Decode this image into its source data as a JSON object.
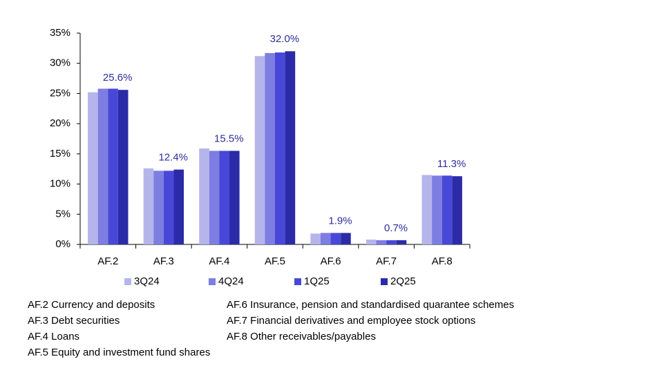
{
  "chart_data": {
    "type": "bar",
    "categories": [
      "AF.2",
      "AF.3",
      "AF.4",
      "AF.5",
      "AF.6",
      "AF.7",
      "AF.8"
    ],
    "series": [
      {
        "name": "3Q24",
        "color": "#b5b5ec",
        "values": [
          25.2,
          12.6,
          15.9,
          31.2,
          1.8,
          0.8,
          11.5
        ]
      },
      {
        "name": "4Q24",
        "color": "#7d7de2",
        "values": [
          25.8,
          12.2,
          15.5,
          31.7,
          1.9,
          0.7,
          11.4
        ]
      },
      {
        "name": "1Q25",
        "color": "#4848d8",
        "values": [
          25.8,
          12.2,
          15.5,
          31.8,
          1.9,
          0.7,
          11.4
        ]
      },
      {
        "name": "2Q25",
        "color": "#2b2ba8",
        "values": [
          25.6,
          12.4,
          15.5,
          32.0,
          1.9,
          0.7,
          11.3
        ],
        "value_labels": [
          "25.6%",
          "12.4%",
          "15.5%",
          "32.0%",
          "1.9%",
          "0.7%",
          "11.3%"
        ]
      }
    ],
    "ylim": [
      0,
      35
    ],
    "yticks": [
      {
        "value": 0,
        "label": "0%"
      },
      {
        "value": 5,
        "label": "5%"
      },
      {
        "value": 10,
        "label": "10%"
      },
      {
        "value": 15,
        "label": "15%"
      },
      {
        "value": 20,
        "label": "20%"
      },
      {
        "value": 25,
        "label": "25%"
      },
      {
        "value": 30,
        "label": "30%"
      },
      {
        "value": 35,
        "label": "35%"
      }
    ],
    "grid": false,
    "notes": [
      "AF.2 Currency and deposits",
      "AF.3 Debt securities",
      "AF.4 Loans",
      "AF.5 Equity and investment fund shares",
      "AF.6 Insurance, pension and standardised quarantee schemes",
      "AF.7 Financial derivatives and employee stock options",
      "AF.8 Other receivables/payables"
    ]
  }
}
